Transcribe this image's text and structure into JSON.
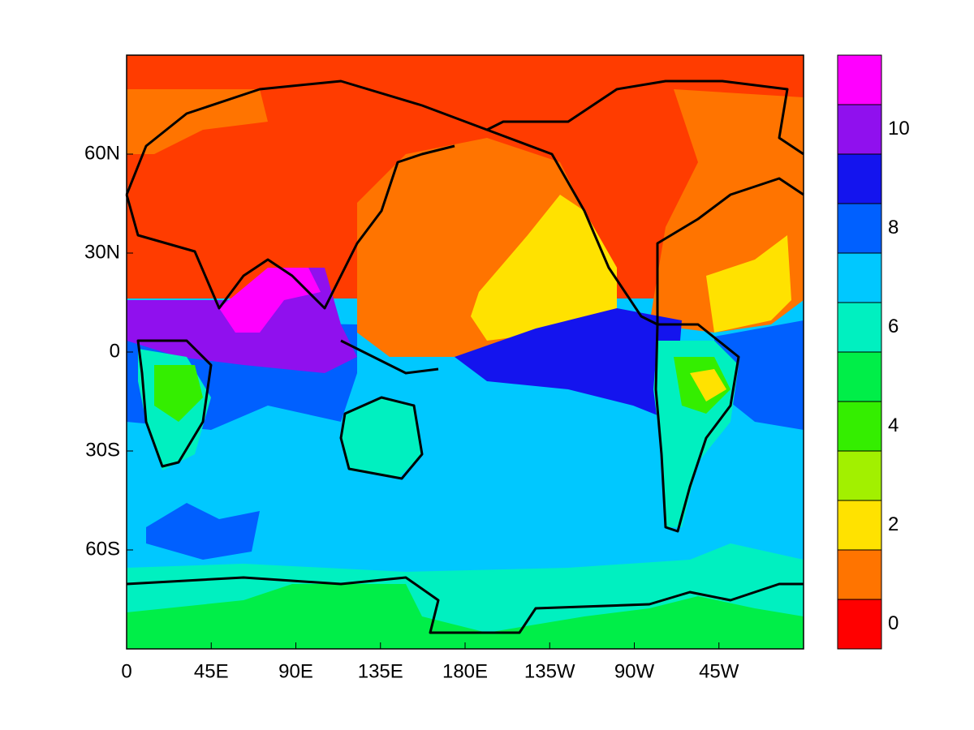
{
  "map": {
    "xlim": [
      0,
      360
    ],
    "ylim": [
      -90,
      90
    ],
    "xticks": [
      0,
      {
        "value": 45,
        "label": "45E"
      },
      {
        "value": 90,
        "label": "90E"
      },
      {
        "value": 135,
        "label": "135E"
      },
      {
        "value": 180,
        "label": "180E"
      },
      {
        "value": 225,
        "label": "135W"
      },
      {
        "value": 270,
        "label": "90W"
      },
      {
        "value": 315,
        "label": "45W"
      }
    ],
    "yticks": [
      {
        "value": 60,
        "label": "60N"
      },
      {
        "value": 30,
        "label": "30N"
      },
      0,
      {
        "value": -30,
        "label": "30S"
      },
      {
        "value": -60,
        "label": "60S"
      }
    ],
    "colorbar": {
      "levels": [
        0,
        1,
        2,
        3,
        4,
        5,
        6,
        7,
        8,
        9,
        10,
        11
      ],
      "colors": [
        "#ff0000",
        "#ff7400",
        "#ffe200",
        "#a2f000",
        "#34ee00",
        "#00ee48",
        "#00f0c0",
        "#00c8ff",
        "#0060ff",
        "#1414ee",
        "#9010ee",
        "#ff00ff"
      ],
      "ticks": [
        0,
        2,
        4,
        6,
        8,
        10
      ]
    }
  }
}
